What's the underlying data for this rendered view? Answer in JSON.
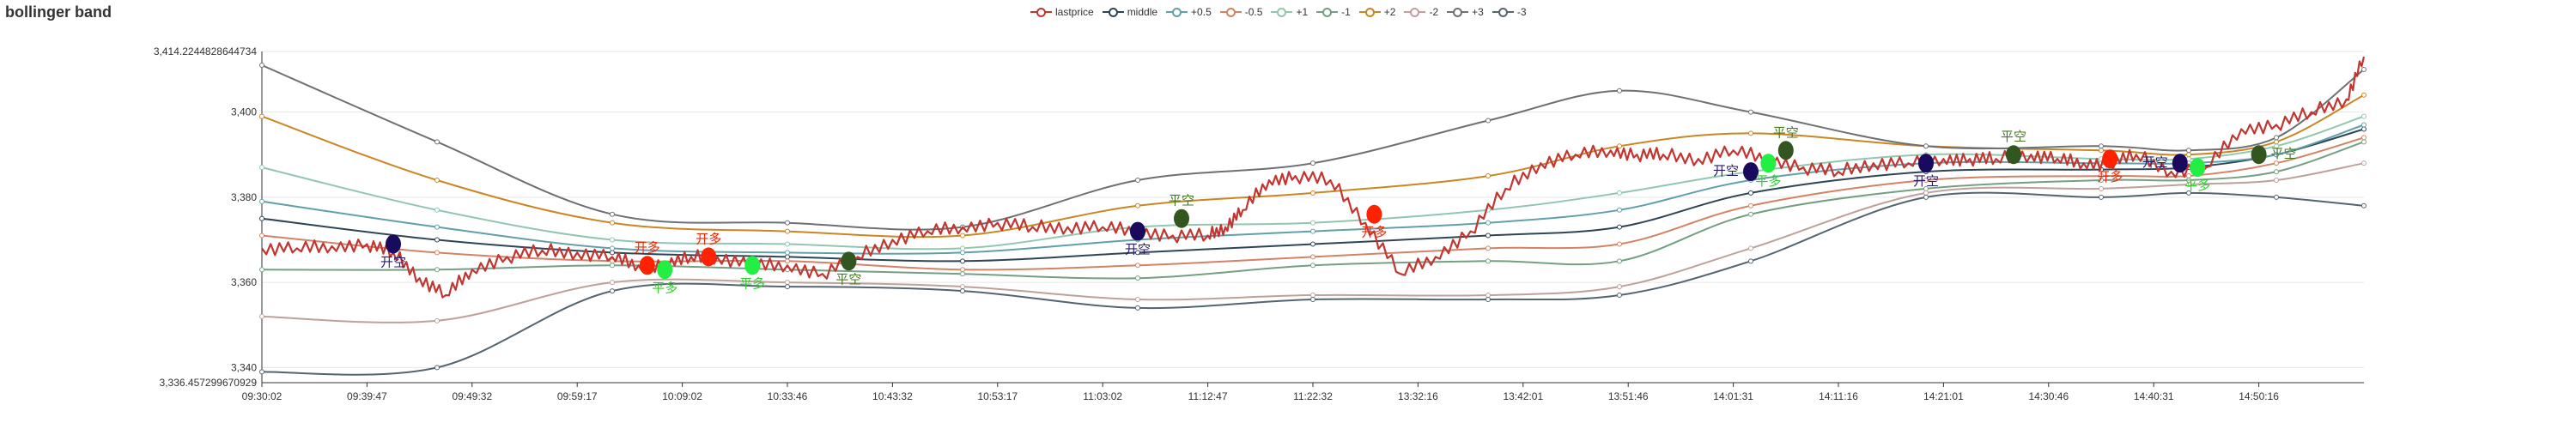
{
  "chart_data": {
    "type": "line",
    "title": "bollinger band",
    "xlabel": "",
    "ylabel": "",
    "legend_position": "top-center",
    "grid": true,
    "ylim": [
      3336.457299670929,
      3414.2244828644734
    ],
    "y_extreme_labels": [
      "3,414.2244828644734",
      "3,336.457299670929"
    ],
    "y_ticks": [
      3340,
      3360,
      3380,
      3400
    ],
    "y_tick_labels": [
      "3,340",
      "3,360",
      "3,380",
      "3,400"
    ],
    "x_tick_labels": [
      "09:30:02",
      "09:39:47",
      "09:49:32",
      "09:59:17",
      "10:09:02",
      "10:33:46",
      "10:43:32",
      "10:53:17",
      "11:03:02",
      "11:12:47",
      "11:22:32",
      "13:32:16",
      "13:42:01",
      "13:51:46",
      "14:01:31",
      "14:11:16",
      "14:21:01",
      "14:30:46",
      "14:40:31",
      "14:50:16"
    ],
    "x_index_range": [
      0,
      24
    ],
    "lastprice": {
      "name": "lastprice",
      "color": "#c23531",
      "x": [
        0,
        0.4,
        0.8,
        1.2,
        1.5,
        1.8,
        2.1,
        2.4,
        2.8,
        3.2,
        3.6,
        4.0,
        4.3,
        4.6,
        4.9,
        5.2,
        5.6,
        6.0,
        6.4,
        6.8,
        7.2,
        7.6,
        8.0,
        8.4,
        8.8,
        9.2,
        9.6,
        10.0,
        10.4,
        10.8,
        11.0,
        11.2,
        11.5,
        11.8,
        12.2,
        12.6,
        13.0,
        13.4,
        13.8,
        14.2,
        14.6,
        15.0,
        15.4,
        15.7,
        16.0,
        16.4,
        16.8,
        17.2,
        17.6,
        18.0,
        18.4,
        18.8,
        19.2,
        19.5,
        19.8,
        20.2,
        20.5,
        20.8,
        21.1,
        21.4,
        21.8,
        22.2,
        22.6,
        23.0,
        23.4,
        23.8,
        24.0
      ],
      "y": [
        3368,
        3368,
        3368.5,
        3369,
        3367,
        3361,
        3357,
        3363,
        3366,
        3367.5,
        3367,
        3366,
        3364,
        3364,
        3366,
        3366,
        3364,
        3364,
        3362,
        3366,
        3370,
        3372,
        3373,
        3374,
        3373,
        3373,
        3373,
        3372,
        3371,
        3371,
        3373,
        3377,
        3384,
        3385,
        3384,
        3374,
        3362,
        3366,
        3372,
        3382,
        3388,
        3390,
        3391,
        3390,
        3390,
        3389,
        3391,
        3389,
        3387,
        3386,
        3388,
        3388,
        3389,
        3389,
        3389,
        3390,
        3389,
        3388,
        3388,
        3390,
        3386,
        3387,
        3396,
        3397,
        3400,
        3403,
        3413
      ]
    },
    "bands": [
      {
        "name": "middle",
        "color": "#2f4554",
        "x": [
          0,
          2,
          4,
          6,
          8,
          10,
          12,
          14,
          15.5,
          17,
          19,
          21,
          22,
          23,
          24
        ],
        "y": [
          3375,
          3370,
          3367,
          3366,
          3365,
          3367,
          3369,
          3371,
          3373,
          3381,
          3386,
          3386.5,
          3387,
          3390,
          3396
        ]
      },
      {
        "name": "+0.5",
        "color": "#61a0a8",
        "x": [
          0,
          2,
          4,
          6,
          8,
          10,
          12,
          14,
          15.5,
          17,
          19,
          21,
          22,
          23,
          24
        ],
        "y": [
          3379,
          3373,
          3368,
          3367,
          3367,
          3370,
          3372,
          3374,
          3377,
          3384,
          3388,
          3388,
          3388,
          3390,
          3397
        ]
      },
      {
        "name": "-0.5",
        "color": "#d48265",
        "x": [
          0,
          2,
          4,
          6,
          8,
          10,
          12,
          14,
          15.5,
          17,
          19,
          21,
          22,
          23,
          24
        ],
        "y": [
          3371,
          3367,
          3365,
          3365,
          3363,
          3364,
          3366,
          3368,
          3369,
          3378,
          3384,
          3385,
          3385,
          3388,
          3394
        ]
      },
      {
        "name": "+1",
        "color": "#91c7ae",
        "x": [
          0,
          2,
          4,
          6,
          8,
          10,
          12,
          14,
          15.5,
          17,
          19,
          21,
          22,
          23,
          24
        ],
        "y": [
          3387,
          3377,
          3370,
          3369,
          3368,
          3373,
          3374,
          3377,
          3381,
          3386,
          3390,
          3389,
          3389,
          3392,
          3399
        ]
      },
      {
        "name": "-1",
        "color": "#749f83",
        "x": [
          0,
          2,
          4,
          6,
          8,
          10,
          12,
          14,
          15.5,
          17,
          19,
          21,
          22,
          23,
          24
        ],
        "y": [
          3363,
          3363,
          3364,
          3363,
          3362,
          3361,
          3364,
          3365,
          3365,
          3376,
          3382,
          3384,
          3384,
          3386,
          3393
        ]
      },
      {
        "name": "+2",
        "color": "#ca8622",
        "x": [
          0,
          2,
          4,
          6,
          8,
          10,
          12,
          14,
          15.5,
          17,
          19,
          21,
          22,
          23,
          24
        ],
        "y": [
          3399,
          3384,
          3374,
          3372,
          3371,
          3378,
          3381,
          3385,
          3392,
          3395,
          3392,
          3391,
          3390,
          3393,
          3404
        ]
      },
      {
        "name": "-2",
        "color": "#bda29a",
        "x": [
          0,
          2,
          4,
          6,
          8,
          10,
          12,
          14,
          15.5,
          17,
          19,
          21,
          22,
          23,
          24
        ],
        "y": [
          3352,
          3351,
          3360,
          3360,
          3359,
          3356,
          3357,
          3357,
          3359,
          3368,
          3381,
          3382,
          3383,
          3384,
          3388
        ]
      },
      {
        "name": "+3",
        "color": "#6e7074",
        "x": [
          0,
          2,
          4,
          6,
          8,
          10,
          12,
          14,
          15.5,
          17,
          19,
          21,
          22,
          23,
          24
        ],
        "y": [
          3411,
          3393,
          3376,
          3374,
          3373,
          3384,
          3388,
          3398,
          3405,
          3400,
          3392,
          3392,
          3391,
          3394,
          3410
        ]
      },
      {
        "name": "-3",
        "color": "#546570",
        "x": [
          0,
          2,
          4,
          6,
          8,
          10,
          12,
          14,
          15.5,
          17,
          19,
          21,
          22,
          23,
          24
        ],
        "y": [
          3339,
          3340,
          3358,
          3359,
          3358,
          3354,
          3356,
          3356,
          3357,
          3365,
          3380,
          3380,
          3381,
          3380,
          3378
        ]
      }
    ],
    "markers": [
      {
        "type": "开空",
        "x": 1.5,
        "y": 3369,
        "color": "#1a0a5e",
        "label_color": "#2a1a6e",
        "label_pos": "below"
      },
      {
        "type": "开多",
        "x": 4.4,
        "y": 3364,
        "color": "#ff2200",
        "label_color": "#ff2200",
        "label_pos": "above"
      },
      {
        "type": "平多",
        "x": 4.6,
        "y": 3363,
        "color": "#22ee44",
        "label_color": "#33cc33",
        "label_pos": "below"
      },
      {
        "type": "开多",
        "x": 5.1,
        "y": 3366,
        "color": "#ff2200",
        "label_color": "#ff2200",
        "label_pos": "above"
      },
      {
        "type": "平多",
        "x": 5.6,
        "y": 3364,
        "color": "#22ee44",
        "label_color": "#33cc33",
        "label_pos": "below"
      },
      {
        "type": "平空",
        "x": 6.7,
        "y": 3365,
        "color": "#33551f",
        "label_color": "#44771f",
        "label_pos": "below"
      },
      {
        "type": "开空",
        "x": 10.0,
        "y": 3372,
        "color": "#1a0a5e",
        "label_color": "#2a1a6e",
        "label_pos": "below"
      },
      {
        "type": "平空",
        "x": 10.5,
        "y": 3375,
        "color": "#33551f",
        "label_color": "#44771f",
        "label_pos": "above"
      },
      {
        "type": "开多",
        "x": 12.7,
        "y": 3376,
        "color": "#ff2200",
        "label_color": "#ff2200",
        "label_pos": "below"
      },
      {
        "type": "开空",
        "x": 17.0,
        "y": 3386,
        "color": "#1a0a5e",
        "label_color": "#2a1a6e",
        "label_pos": "left"
      },
      {
        "type": "平多",
        "x": 17.2,
        "y": 3388,
        "color": "#22ee44",
        "label_color": "#33cc33",
        "label_pos": "below"
      },
      {
        "type": "平空",
        "x": 17.4,
        "y": 3391,
        "color": "#33551f",
        "label_color": "#44771f",
        "label_pos": "above"
      },
      {
        "type": "开空",
        "x": 19.0,
        "y": 3388,
        "color": "#1a0a5e",
        "label_color": "#2a1a6e",
        "label_pos": "below"
      },
      {
        "type": "平空",
        "x": 20.0,
        "y": 3390,
        "color": "#33551f",
        "label_color": "#44771f",
        "label_pos": "above"
      },
      {
        "type": "开多",
        "x": 21.1,
        "y": 3389,
        "color": "#ff2200",
        "label_color": "#ff2200",
        "label_pos": "below"
      },
      {
        "type": "开空",
        "x": 21.9,
        "y": 3388,
        "color": "#1a0a5e",
        "label_color": "#2a1a6e",
        "label_pos": "left"
      },
      {
        "type": "平多",
        "x": 22.1,
        "y": 3387,
        "color": "#22ee44",
        "label_color": "#33cc33",
        "label_pos": "below"
      },
      {
        "type": "平空",
        "x": 22.8,
        "y": 3390,
        "color": "#33551f",
        "label_color": "#44771f",
        "label_pos": "right"
      }
    ]
  },
  "legend_items": [
    {
      "name": "lastprice",
      "color": "#c23531"
    },
    {
      "name": "middle",
      "color": "#2f4554"
    },
    {
      "name": "+0.5",
      "color": "#61a0a8"
    },
    {
      "name": "-0.5",
      "color": "#d48265"
    },
    {
      "name": "+1",
      "color": "#91c7ae"
    },
    {
      "name": "-1",
      "color": "#749f83"
    },
    {
      "name": "+2",
      "color": "#ca8622"
    },
    {
      "name": "-2",
      "color": "#bda29a"
    },
    {
      "name": "+3",
      "color": "#6e7074"
    },
    {
      "name": "-3",
      "color": "#546570"
    }
  ]
}
